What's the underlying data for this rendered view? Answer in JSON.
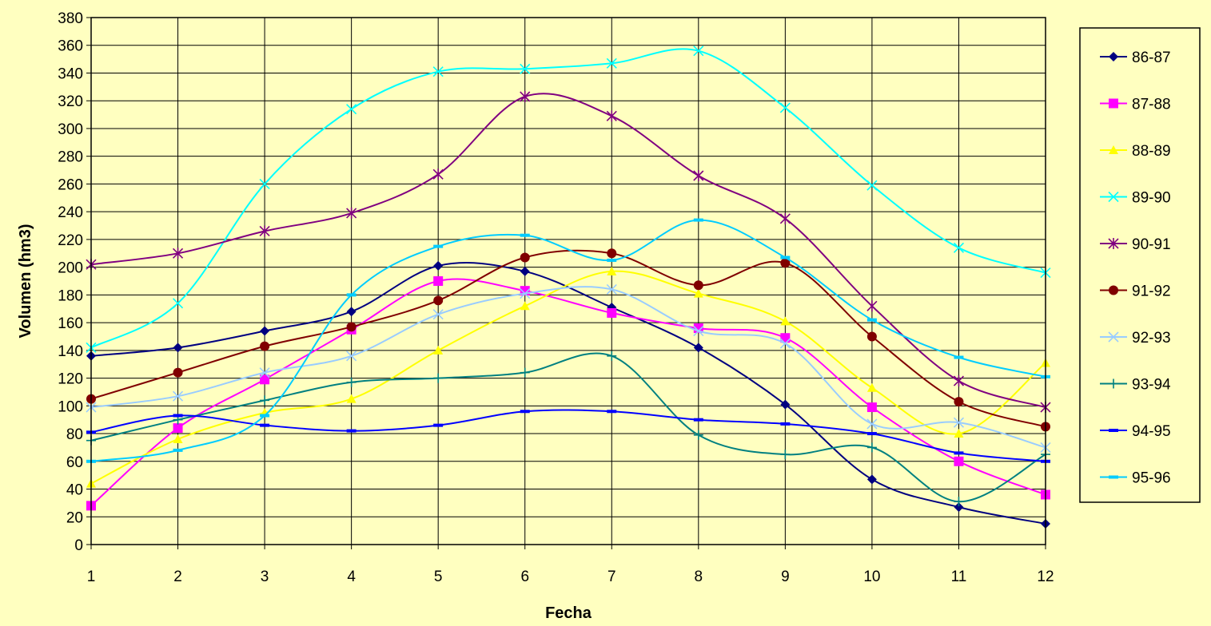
{
  "chart_data": {
    "type": "line",
    "title": "",
    "xlabel": "Fecha",
    "ylabel": "Volumen (hm3)",
    "categories": [
      "1",
      "2",
      "3",
      "4",
      "5",
      "6",
      "7",
      "8",
      "9",
      "10",
      "11",
      "12"
    ],
    "ylim": [
      0,
      380
    ],
    "yticks": [
      0,
      20,
      40,
      60,
      80,
      100,
      120,
      140,
      160,
      180,
      200,
      220,
      240,
      260,
      280,
      300,
      320,
      340,
      360,
      380
    ],
    "grid": true,
    "smooth": true,
    "legend_position": "right",
    "series": [
      {
        "name": "86-87",
        "color": "#000080",
        "marker": "diamond",
        "values": [
          136,
          142,
          154,
          168,
          201,
          197,
          171,
          142,
          101,
          47,
          27,
          15
        ]
      },
      {
        "name": "87-88",
        "color": "#FF00FF",
        "marker": "square",
        "values": [
          28,
          84,
          119,
          155,
          190,
          183,
          167,
          156,
          149,
          99,
          60,
          36
        ]
      },
      {
        "name": "88-89",
        "color": "#FFFF00",
        "marker": "triangle",
        "values": [
          44,
          76,
          95,
          105,
          140,
          172,
          197,
          181,
          161,
          113,
          80,
          131
        ]
      },
      {
        "name": "89-90",
        "color": "#00FFFF",
        "marker": "x",
        "values": [
          142,
          174,
          260,
          314,
          341,
          343,
          347,
          356,
          315,
          259,
          214,
          196
        ]
      },
      {
        "name": "90-91",
        "color": "#800080",
        "marker": "star",
        "values": [
          202,
          210,
          226,
          239,
          267,
          323,
          309,
          266,
          235,
          172,
          118,
          99
        ]
      },
      {
        "name": "91-92",
        "color": "#800000",
        "marker": "circle",
        "values": [
          105,
          124,
          143,
          157,
          176,
          207,
          210,
          187,
          203,
          150,
          103,
          85
        ]
      },
      {
        "name": "92-93",
        "color": "#99CCFF",
        "marker": "x",
        "values": [
          99,
          107,
          124,
          136,
          166,
          181,
          184,
          154,
          145,
          87,
          88,
          70
        ]
      },
      {
        "name": "93-94",
        "color": "#008080",
        "marker": "plus",
        "values": [
          75,
          90,
          104,
          117,
          120,
          124,
          136,
          79,
          65,
          70,
          31,
          65
        ]
      },
      {
        "name": "94-95",
        "color": "#0000FF",
        "marker": "dash",
        "values": [
          81,
          93,
          86,
          82,
          86,
          96,
          96,
          90,
          87,
          80,
          66,
          60
        ]
      },
      {
        "name": "95-96",
        "color": "#00CCFF",
        "marker": "dash",
        "values": [
          60,
          68,
          93,
          180,
          215,
          223,
          205,
          234,
          207,
          162,
          135,
          121
        ]
      }
    ]
  }
}
